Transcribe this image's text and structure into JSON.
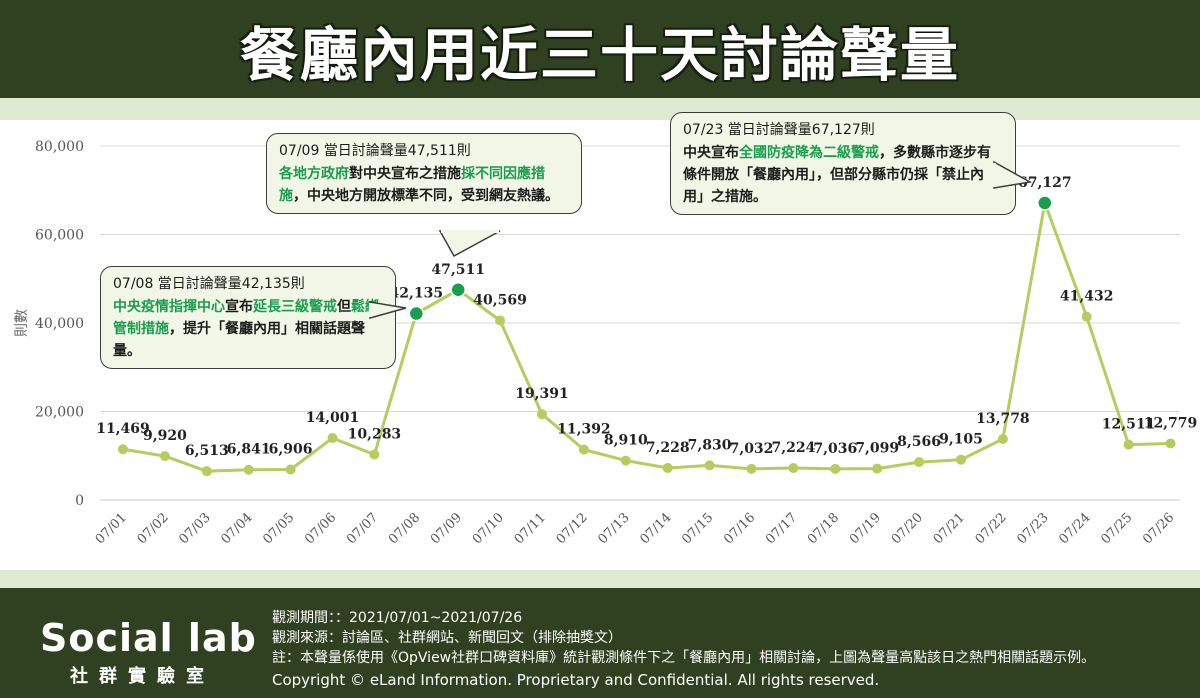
{
  "title": "餐廳內用近三十天討論聲量",
  "chart_data": {
    "type": "line",
    "categories": [
      "07/01",
      "07/02",
      "07/03",
      "07/04",
      "07/05",
      "07/06",
      "07/07",
      "07/08",
      "07/09",
      "07/10",
      "07/11",
      "07/12",
      "07/13",
      "07/14",
      "07/15",
      "07/16",
      "07/17",
      "07/18",
      "07/19",
      "07/20",
      "07/21",
      "07/22",
      "07/23",
      "07/24",
      "07/25",
      "07/26"
    ],
    "values": [
      11469,
      9920,
      6513,
      6841,
      6906,
      14001,
      10283,
      42135,
      47511,
      40569,
      19391,
      11392,
      8910,
      7228,
      7830,
      7032,
      7224,
      7036,
      7099,
      8566,
      9105,
      13778,
      67127,
      41432,
      12511,
      12779
    ],
    "data_labels": [
      "11,469",
      "9,920",
      "6,513",
      "6,841",
      "6,906",
      "14,001",
      "10,283",
      "42,135",
      "47,511",
      "40,569",
      "19,391",
      "11,392",
      "8,910",
      "7,228",
      "7,830",
      "7,032",
      "7,224",
      "7,036",
      "7,099",
      "8,566",
      "9,105",
      "13,778",
      "67,127",
      "41,432",
      "12,511",
      "12,779"
    ],
    "highlight_indices": [
      7,
      8,
      22
    ],
    "ylabel": "則數",
    "xlabel": "",
    "ylim": [
      0,
      80000
    ],
    "y_ticks": [
      0,
      20000,
      40000,
      60000,
      80000
    ],
    "y_tick_labels": [
      "0",
      "20,000",
      "40,000",
      "60,000",
      "80,000"
    ],
    "grid": true,
    "line_color": "#b5cc5e",
    "highlight_color": "#1a9d4c"
  },
  "callouts": [
    {
      "title": "07/08 當日討論聲量42,135則",
      "body": [
        {
          "t": "中央疫情指揮中心",
          "hl": true
        },
        {
          "t": "宣布",
          "hl": false
        },
        {
          "t": "延長三級警戒",
          "hl": true
        },
        {
          "t": "但",
          "hl": false
        },
        {
          "t": "鬆綁管制措施",
          "hl": true
        },
        {
          "t": "，提升「餐廳內用」相關話題聲量。",
          "hl": false
        }
      ]
    },
    {
      "title": "07/09 當日討論聲量47,511則",
      "body": [
        {
          "t": "各地方政府",
          "hl": true
        },
        {
          "t": "對中央宣布之措施",
          "hl": false
        },
        {
          "t": "採不同因應措施",
          "hl": true
        },
        {
          "t": "，中央地方開放標準不同，受到網友熱議。",
          "hl": false
        }
      ]
    },
    {
      "title": "07/23 當日討論聲量67,127則",
      "body": [
        {
          "t": "中央宣布",
          "hl": false
        },
        {
          "t": "全國防疫降為二級警戒",
          "hl": true
        },
        {
          "t": "，多數縣市逐步有條件開放「餐廳內用」，但部分縣市仍採「禁止內用」之措施。",
          "hl": false
        }
      ]
    }
  ],
  "footer": {
    "logo_text": "Social lab",
    "logo_sub": "社群實驗室",
    "period": "觀測期間：：2021/07/01~2021/07/26",
    "source": "觀測來源：討論區、社群網站、新聞回文（排除抽獎文）",
    "note": "註：本聲量係使用《OpView社群口碑資料庫》統計觀測條件下之「餐廳內用」相關討論，上圖為聲量高點該日之熱門相關話題示例。",
    "copyright": "Copyright © eLand Information. Proprietary and Confidential. All rights reserved."
  }
}
